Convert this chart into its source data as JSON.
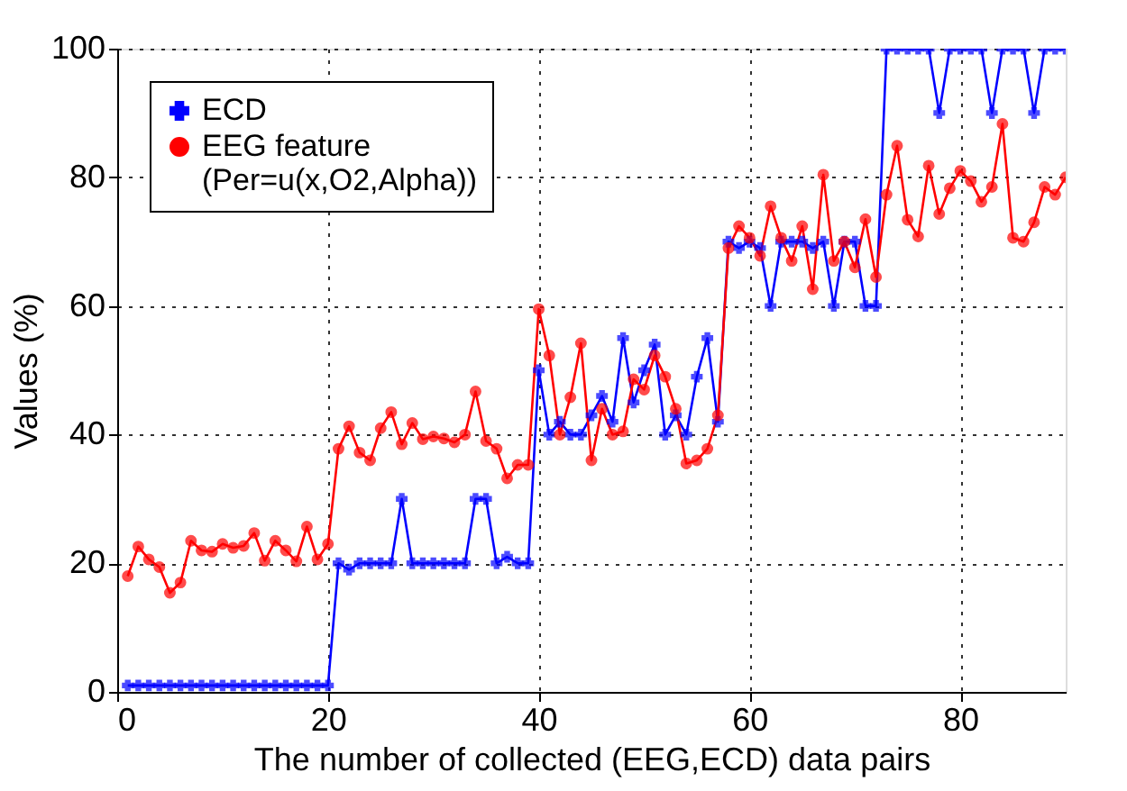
{
  "chart_data": {
    "type": "line",
    "xlabel": "The number of collected (EEG,ECD) data pairs",
    "ylabel": "Values (%)",
    "x": [
      1,
      2,
      3,
      4,
      5,
      6,
      7,
      8,
      9,
      10,
      11,
      12,
      13,
      14,
      15,
      16,
      17,
      18,
      19,
      20,
      21,
      22,
      23,
      24,
      25,
      26,
      27,
      28,
      29,
      30,
      31,
      32,
      33,
      34,
      35,
      36,
      37,
      38,
      39,
      40,
      41,
      42,
      43,
      44,
      45,
      46,
      47,
      48,
      49,
      50,
      51,
      52,
      53,
      54,
      55,
      56,
      57,
      58,
      59,
      60,
      61,
      62,
      63,
      64,
      65,
      66,
      67,
      68,
      69,
      70,
      71,
      72,
      73,
      74,
      75,
      76,
      77,
      78,
      79,
      80,
      81,
      82,
      83,
      84,
      85,
      86,
      87,
      88,
      89,
      90
    ],
    "series": [
      {
        "name": "ECD",
        "color": "#0000ff",
        "marker": "cross",
        "values": [
          1,
          1,
          1,
          1,
          1,
          1,
          1,
          1,
          1,
          1,
          1,
          1,
          1,
          1,
          1,
          1,
          1,
          1,
          1,
          1,
          20,
          19,
          20,
          20,
          20,
          20,
          30,
          20,
          20,
          20,
          20,
          20,
          20,
          30,
          30,
          20,
          21,
          20,
          20,
          50,
          40,
          42,
          40,
          40,
          43,
          46,
          42,
          55,
          45,
          50,
          54,
          40,
          43,
          40,
          49,
          55,
          42,
          70,
          69,
          70,
          69,
          60,
          70,
          70,
          70,
          69,
          70,
          60,
          70,
          70,
          60,
          60,
          100,
          100,
          100,
          100,
          100,
          90,
          100,
          100,
          100,
          100,
          90,
          100,
          100,
          100,
          90,
          100,
          100,
          100
        ]
      },
      {
        "name": "EEG feature (Per=u(x,O2,Alpha))",
        "color": "#ff0000",
        "marker": "circle",
        "values": [
          18,
          22.6,
          20.6,
          19.4,
          15.4,
          17,
          23.5,
          22,
          21.8,
          23,
          22.4,
          22.7,
          24.7,
          20.4,
          23.5,
          22,
          20.3,
          25.7,
          20.6,
          23,
          37.8,
          41.3,
          37.2,
          36,
          41,
          43.5,
          38.5,
          41.8,
          39.3,
          39.7,
          39.4,
          38.8,
          40,
          46.7,
          39,
          37.8,
          33.2,
          35.3,
          35.3,
          59.5,
          52.3,
          40,
          45.8,
          54.2,
          36,
          44,
          40,
          40.5,
          48.6,
          47,
          52.3,
          49,
          44,
          35.5,
          36,
          37.8,
          43,
          69,
          72.4,
          70.6,
          67.8,
          75.5,
          70.6,
          67,
          72.4,
          62.6,
          80.4,
          67,
          70,
          66,
          73.5,
          64.5,
          77.3,
          84.9,
          73.4,
          70.8,
          81.8,
          74.3,
          78.3,
          81,
          79.4,
          76.2,
          78.5,
          88.3,
          70.6,
          70,
          73,
          78.5,
          77.3,
          80
        ]
      }
    ],
    "xlim": [
      0,
      90
    ],
    "ylim": [
      0,
      100
    ],
    "xticks": [
      0,
      20,
      40,
      60,
      80
    ],
    "yticks": [
      0,
      20,
      40,
      60,
      80,
      100
    ],
    "grid": true,
    "legend": "top left",
    "line_style": "solid"
  }
}
